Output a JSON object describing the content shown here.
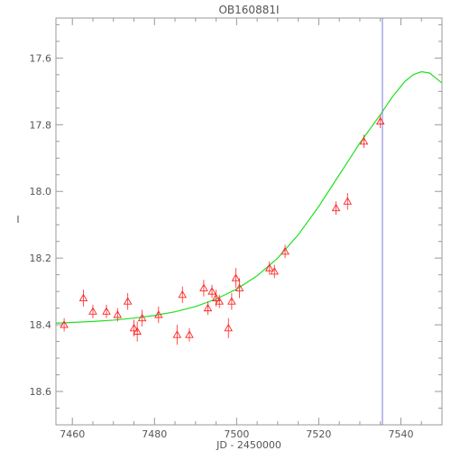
{
  "chart_data": {
    "type": "scatter",
    "title": "OB160881I",
    "xlabel": "JD - 2450000",
    "ylabel": "I",
    "xlim": [
      7456,
      7550
    ],
    "ylim": [
      18.7,
      17.48
    ],
    "y_inverted": true,
    "x_ticks": [
      7460,
      7480,
      7500,
      7520,
      7540
    ],
    "y_ticks": [
      17.6,
      17.8,
      18.0,
      18.2,
      18.4,
      18.6
    ],
    "grid": false,
    "legend": "none",
    "vertical_line_x": 7535.5,
    "colors": {
      "points": "#ff2222",
      "model": "#22e022",
      "vline": "#7a7adf",
      "axes": "#999999",
      "text": "#555555"
    },
    "series": [
      {
        "type": "scatter",
        "marker": "triangle",
        "points": [
          {
            "x": 7458.0,
            "y": 18.4,
            "err": 0.02
          },
          {
            "x": 7462.7,
            "y": 18.32,
            "err": 0.025
          },
          {
            "x": 7465.0,
            "y": 18.36,
            "err": 0.02
          },
          {
            "x": 7468.3,
            "y": 18.36,
            "err": 0.02
          },
          {
            "x": 7471.0,
            "y": 18.37,
            "err": 0.02
          },
          {
            "x": 7473.5,
            "y": 18.33,
            "err": 0.025
          },
          {
            "x": 7475.0,
            "y": 18.41,
            "err": 0.025
          },
          {
            "x": 7475.8,
            "y": 18.42,
            "err": 0.03
          },
          {
            "x": 7477.0,
            "y": 18.38,
            "err": 0.025
          },
          {
            "x": 7481.0,
            "y": 18.37,
            "err": 0.025
          },
          {
            "x": 7485.5,
            "y": 18.43,
            "err": 0.03
          },
          {
            "x": 7486.8,
            "y": 18.31,
            "err": 0.025
          },
          {
            "x": 7488.5,
            "y": 18.43,
            "err": 0.02
          },
          {
            "x": 7492.0,
            "y": 18.29,
            "err": 0.025
          },
          {
            "x": 7493.0,
            "y": 18.35,
            "err": 0.02
          },
          {
            "x": 7494.0,
            "y": 18.3,
            "err": 0.02
          },
          {
            "x": 7495.0,
            "y": 18.32,
            "err": 0.025
          },
          {
            "x": 7495.8,
            "y": 18.33,
            "err": 0.02
          },
          {
            "x": 7498.0,
            "y": 18.41,
            "err": 0.03
          },
          {
            "x": 7498.8,
            "y": 18.33,
            "err": 0.025
          },
          {
            "x": 7499.8,
            "y": 18.26,
            "err": 0.03
          },
          {
            "x": 7500.7,
            "y": 18.29,
            "err": 0.03
          },
          {
            "x": 7508.0,
            "y": 18.23,
            "err": 0.02
          },
          {
            "x": 7509.2,
            "y": 18.24,
            "err": 0.02
          },
          {
            "x": 7511.8,
            "y": 18.18,
            "err": 0.02
          },
          {
            "x": 7524.2,
            "y": 18.05,
            "err": 0.02
          },
          {
            "x": 7527.0,
            "y": 18.03,
            "err": 0.025
          },
          {
            "x": 7531.0,
            "y": 17.85,
            "err": 0.02
          },
          {
            "x": 7535.0,
            "y": 17.79,
            "err": 0.02
          }
        ]
      },
      {
        "type": "line",
        "x": [
          7456,
          7460,
          7465,
          7470,
          7475,
          7480,
          7485,
          7490,
          7495,
          7500,
          7505,
          7510,
          7515,
          7520,
          7525,
          7530,
          7535,
          7538,
          7541,
          7543,
          7545,
          7547,
          7550
        ],
        "y": [
          18.395,
          18.393,
          18.39,
          18.386,
          18.38,
          18.372,
          18.361,
          18.345,
          18.323,
          18.293,
          18.253,
          18.2,
          18.13,
          18.045,
          17.95,
          17.855,
          17.77,
          17.715,
          17.67,
          17.65,
          17.641,
          17.645,
          17.675
        ]
      }
    ]
  }
}
